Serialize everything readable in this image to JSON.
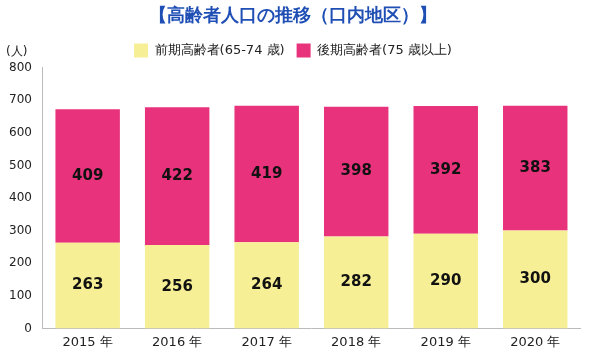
{
  "chart_data": {
    "type": "bar",
    "title": "【高齢者人口の推移（口内地区）】",
    "y_label": "(人)",
    "categories": [
      "2015 年",
      "2016 年",
      "2017 年",
      "2018 年",
      "2019 年",
      "2020 年"
    ],
    "series": [
      {
        "name": "前期高齢者(65-74 歳)",
        "color": "#f7ef95",
        "values": [
          263,
          256,
          264,
          282,
          290,
          300
        ]
      },
      {
        "name": "後期高齢者(75 歳以上)",
        "color": "#e8337c",
        "values": [
          409,
          422,
          419,
          398,
          392,
          383
        ]
      }
    ],
    "ylim": [
      0,
      800
    ],
    "yticks": [
      0,
      100,
      200,
      300,
      400,
      500,
      600,
      700,
      800
    ],
    "stacked": true,
    "data_labels": true,
    "grid": false,
    "legend": "top"
  }
}
